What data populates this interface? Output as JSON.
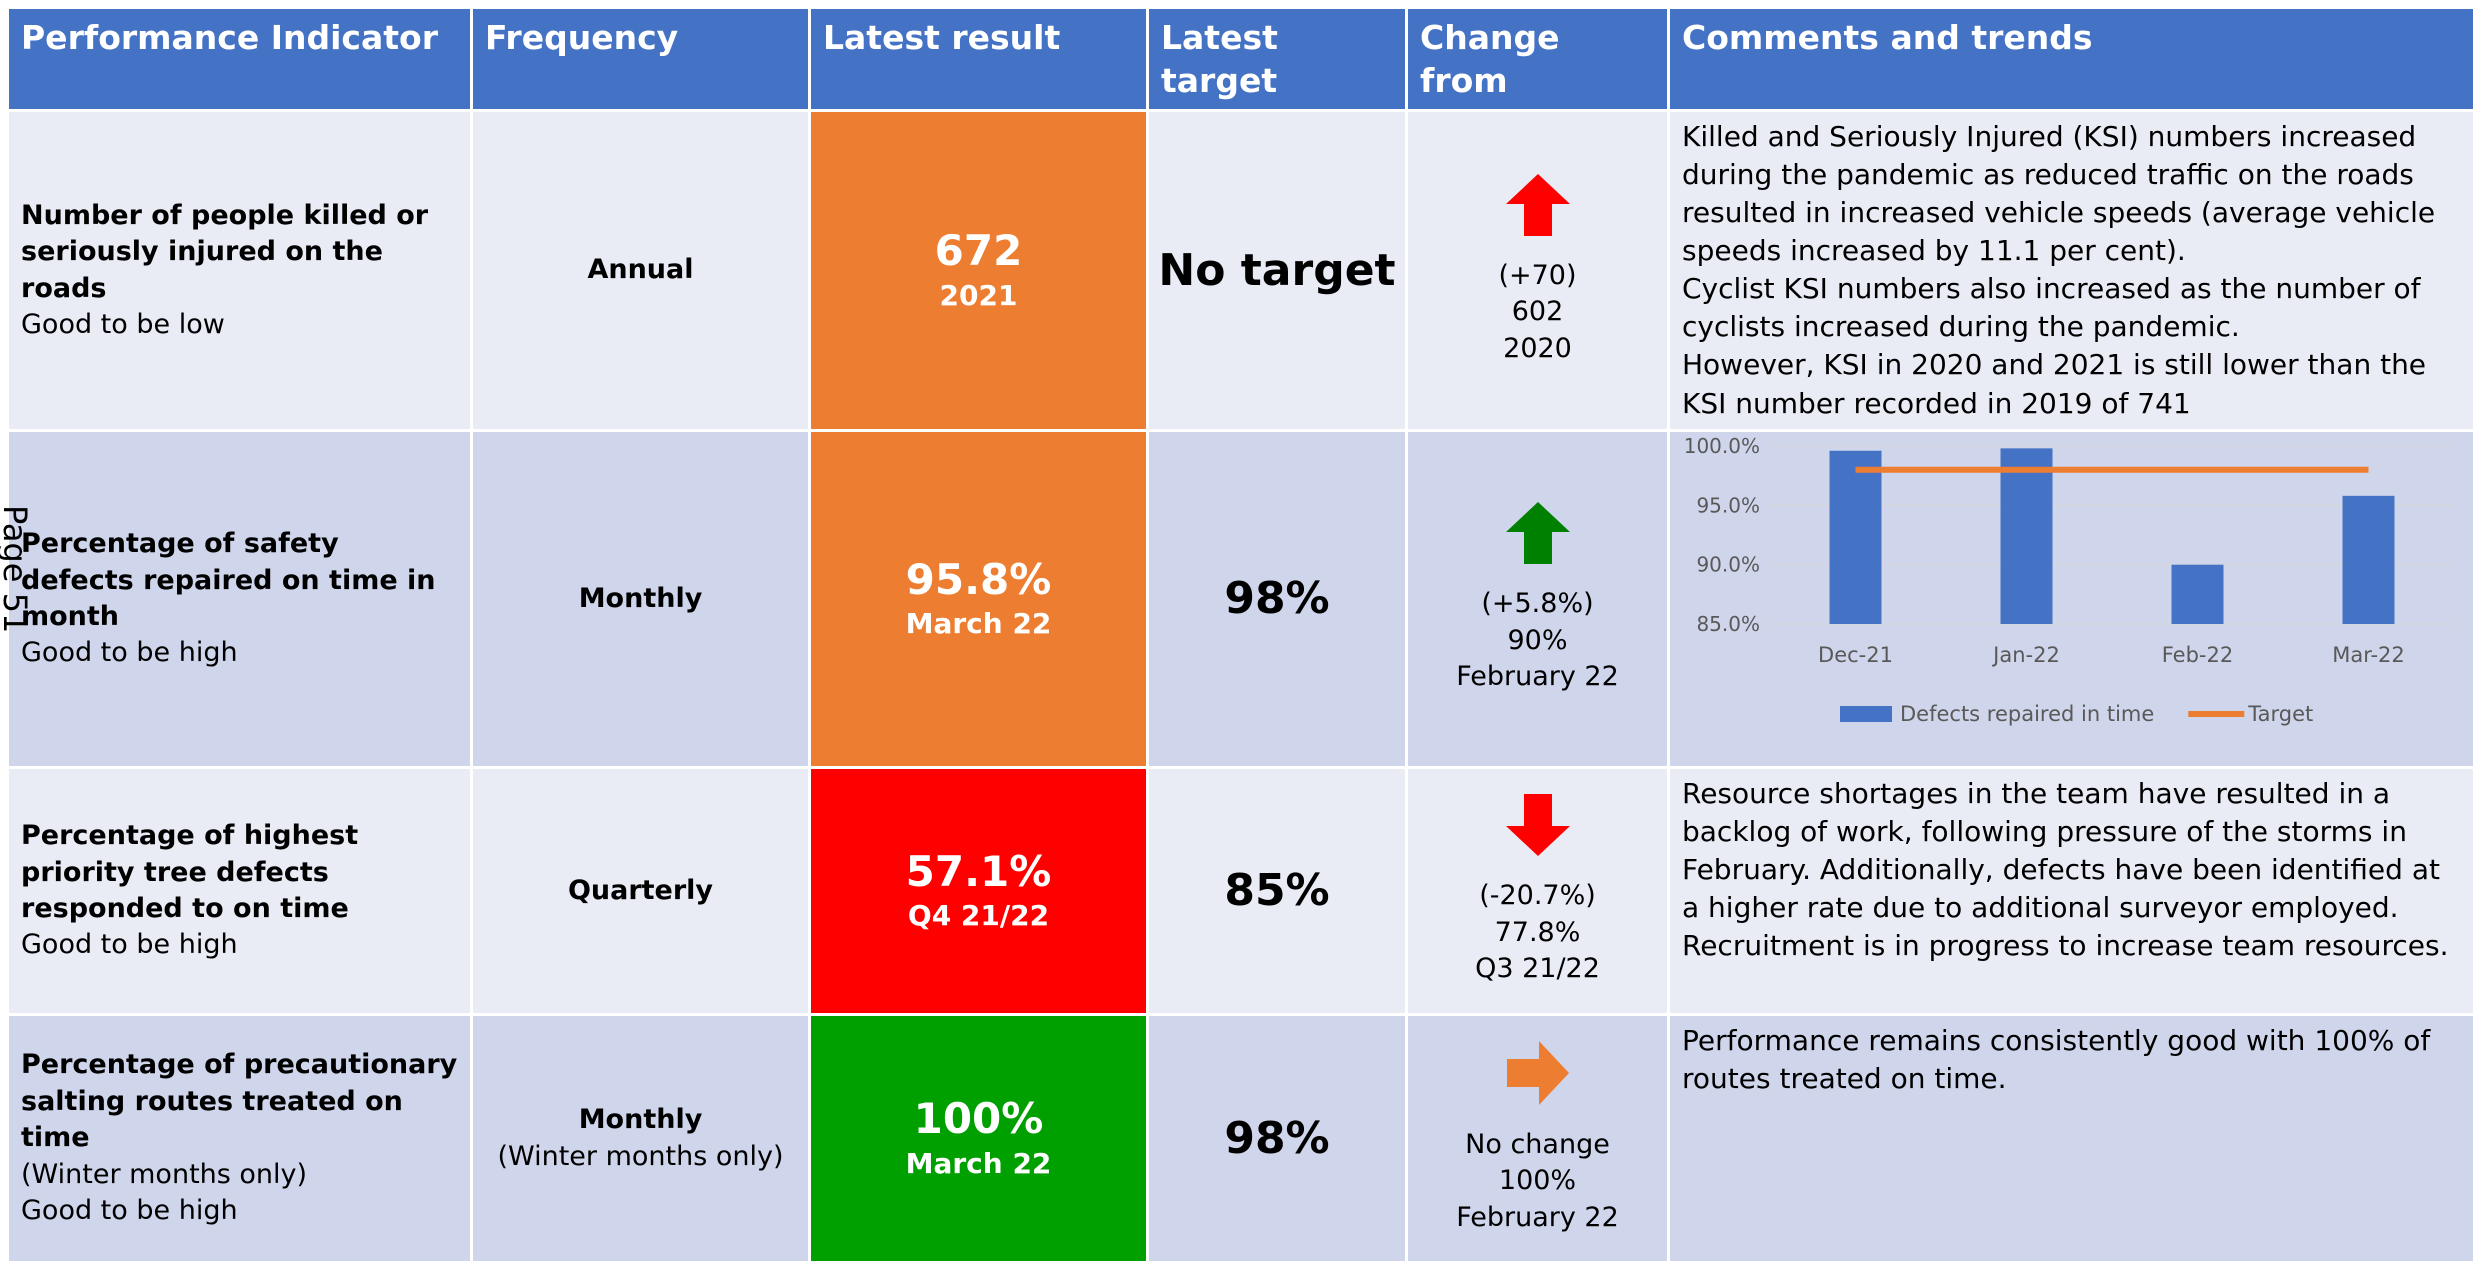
{
  "page_label": "Page 51",
  "table": {
    "header": [
      "Performance Indicator",
      "Frequency",
      "Latest result",
      "Latest target",
      "Change from previous result",
      "Comments and trends"
    ],
    "rows": [
      {
        "indicator": {
          "title": "Number of people killed or seriously injured on the roads",
          "notes": [
            "Good to be low"
          ]
        },
        "frequency": [
          "Annual"
        ],
        "result": "672",
        "period": "2021",
        "target": "No target",
        "change": [
          "(+70)",
          "602",
          "2020"
        ],
        "comments": [
          "Killed and Seriously Injured (KSI) numbers increased during the pandemic as reduced traffic on the roads resulted in increased vehicle speeds (average vehicle speeds increased by 11.1 per cent).",
          "Cyclist KSI numbers also increased as the number of cyclists increased during the pandemic.",
          "However, KSI in 2020 and 2021 is still lower than the KSI number recorded in 2019 of 741"
        ]
      },
      {
        "indicator": {
          "title": "Percentage of safety defects repaired on time in month",
          "notes": [
            "Good to be high"
          ]
        },
        "frequency": [
          "Monthly"
        ],
        "result": "95.8%",
        "period": "March 22",
        "target": "98%",
        "change": [
          "(+5.8%)",
          "90%",
          "February 22"
        ],
        "chart_data": {
          "type": "bar",
          "categories": [
            "Dec-21",
            "Jan-22",
            "Feb-22",
            "Mar-22"
          ],
          "series": [
            {
              "name": "Defects repaired in time",
              "type": "bar",
              "color": "#4472c4",
              "values": [
                99.6,
                99.8,
                90,
                95.8
              ]
            },
            {
              "name": "Target",
              "type": "line",
              "color": "#ed7d31",
              "values": [
                98,
                98,
                98,
                98
              ]
            }
          ],
          "ylim": [
            85,
            100
          ],
          "yticks": [
            {
              "value": 85,
              "label": "85.0%"
            },
            {
              "value": 90,
              "label": "90.0%"
            },
            {
              "value": 95,
              "label": "95.0%"
            },
            {
              "value": 100,
              "label": "100.0%"
            }
          ],
          "grid": true,
          "legend": "bottom"
        }
      },
      {
        "indicator": {
          "title": "Percentage of highest priority tree defects responded to on time",
          "notes": [
            "Good to be high"
          ]
        },
        "frequency": [
          "Quarterly"
        ],
        "result": "57.1%",
        "period": "Q4 21/22",
        "target": "85%",
        "change": [
          "(-20.7%)",
          "77.8%",
          "Q3 21/22"
        ],
        "comments": [
          "Resource shortages in the team have resulted in a backlog of work, following pressure of the storms in February. Additionally, defects have been identified at a higher rate due to additional surveyor employed. Recruitment is in progress to increase team resources."
        ]
      },
      {
        "indicator": {
          "title": "Percentage of precautionary salting routes treated on time",
          "notes": [
            "(Winter months only)",
            "Good to be high"
          ]
        },
        "frequency": [
          "Monthly",
          "(Winter months only)"
        ],
        "result": "100%",
        "period": "March 22",
        "target": "98%",
        "change": [
          "No change",
          "100%",
          "February 22"
        ],
        "comments": [
          "Performance remains consistently good with 100% of routes treated on time."
        ]
      }
    ]
  }
}
